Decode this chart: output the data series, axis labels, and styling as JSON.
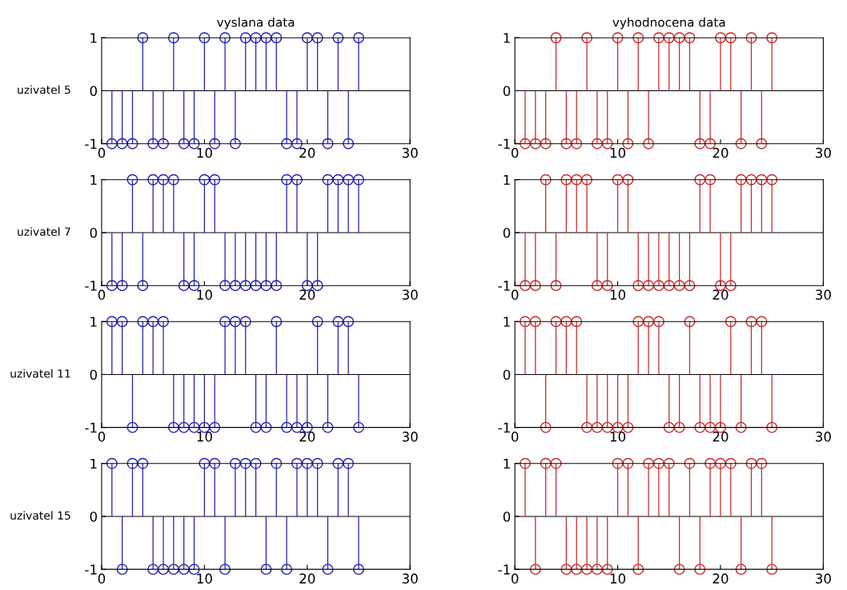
{
  "chart_data": [
    {
      "type": "lollipop",
      "title": "vyslana data",
      "ref_lines": [
        {
          "axis": "y",
          "value": 0,
          "color": "#000000"
        }
      ],
      "ylabel": "uzivatel 5",
      "x": [
        1,
        2,
        3,
        4,
        5,
        6,
        7,
        8,
        9,
        10,
        11,
        12,
        13,
        14,
        15,
        16,
        17,
        18,
        19,
        20,
        21,
        22,
        23,
        24,
        25
      ],
      "series": [
        {
          "color": "#2020b0",
          "values": [
            -1,
            -1,
            -1,
            1,
            -1,
            -1,
            1,
            -1,
            -1,
            1,
            -1,
            1,
            -1,
            1,
            1,
            1,
            1,
            -1,
            -1,
            1,
            1,
            -1,
            1,
            -1,
            1
          ]
        }
      ],
      "xlim": [
        0,
        30
      ],
      "xticks": [
        0,
        10,
        20,
        30
      ],
      "ylim": [
        -1,
        1
      ],
      "yticks": [
        -1,
        0,
        1
      ],
      "marker": "circle",
      "grid": false,
      "legend": false
    },
    {
      "type": "lollipop",
      "title": "vyhodnocena data",
      "ref_lines": [
        {
          "axis": "y",
          "value": 0,
          "color": "#000000"
        }
      ],
      "x": [
        1,
        2,
        3,
        4,
        5,
        6,
        7,
        8,
        9,
        10,
        11,
        12,
        13,
        14,
        15,
        16,
        17,
        18,
        19,
        20,
        21,
        22,
        23,
        24,
        25
      ],
      "series": [
        {
          "color": "#c82828",
          "values": [
            -1,
            -1,
            -1,
            1,
            -1,
            -1,
            1,
            -1,
            -1,
            1,
            -1,
            1,
            -1,
            1,
            1,
            1,
            1,
            -1,
            -1,
            1,
            1,
            -1,
            1,
            -1,
            1
          ]
        }
      ],
      "xlim": [
        0,
        30
      ],
      "xticks": [
        0,
        10,
        20,
        30
      ],
      "ylim": [
        -1,
        1
      ],
      "yticks": [
        -1,
        0,
        1
      ],
      "marker": "circle",
      "grid": false,
      "legend": false
    },
    {
      "type": "lollipop",
      "ylabel": "uzivatel 7",
      "ref_lines": [
        {
          "axis": "y",
          "value": 0,
          "color": "#000000"
        }
      ],
      "x": [
        1,
        2,
        3,
        4,
        5,
        6,
        7,
        8,
        9,
        10,
        11,
        12,
        13,
        14,
        15,
        16,
        17,
        18,
        19,
        20,
        21,
        22,
        23,
        24,
        25
      ],
      "series": [
        {
          "color": "#2020b0",
          "values": [
            -1,
            -1,
            1,
            -1,
            1,
            1,
            1,
            -1,
            -1,
            1,
            1,
            -1,
            -1,
            -1,
            -1,
            -1,
            -1,
            1,
            1,
            -1,
            -1,
            1,
            1,
            1,
            1
          ]
        }
      ],
      "xlim": [
        0,
        30
      ],
      "xticks": [
        0,
        10,
        20,
        30
      ],
      "ylim": [
        -1,
        1
      ],
      "yticks": [
        -1,
        0,
        1
      ],
      "marker": "circle",
      "grid": false,
      "legend": false
    },
    {
      "type": "lollipop",
      "ref_lines": [
        {
          "axis": "y",
          "value": 0,
          "color": "#000000"
        }
      ],
      "x": [
        1,
        2,
        3,
        4,
        5,
        6,
        7,
        8,
        9,
        10,
        11,
        12,
        13,
        14,
        15,
        16,
        17,
        18,
        19,
        20,
        21,
        22,
        23,
        24,
        25
      ],
      "series": [
        {
          "color": "#c82828",
          "values": [
            -1,
            -1,
            1,
            -1,
            1,
            1,
            1,
            -1,
            -1,
            1,
            1,
            -1,
            -1,
            -1,
            -1,
            -1,
            -1,
            1,
            1,
            -1,
            -1,
            1,
            1,
            1,
            1
          ]
        }
      ],
      "xlim": [
        0,
        30
      ],
      "xticks": [
        0,
        10,
        20,
        30
      ],
      "ylim": [
        -1,
        1
      ],
      "yticks": [
        -1,
        0,
        1
      ],
      "marker": "circle",
      "grid": false,
      "legend": false
    },
    {
      "type": "lollipop",
      "ylabel": "uzivatel 11",
      "ref_lines": [
        {
          "axis": "y",
          "value": 0,
          "color": "#000000"
        }
      ],
      "x": [
        1,
        2,
        3,
        4,
        5,
        6,
        7,
        8,
        9,
        10,
        11,
        12,
        13,
        14,
        15,
        16,
        17,
        18,
        19,
        20,
        21,
        22,
        23,
        24,
        25
      ],
      "series": [
        {
          "color": "#2020b0",
          "values": [
            1,
            1,
            -1,
            1,
            1,
            1,
            -1,
            -1,
            -1,
            -1,
            -1,
            1,
            1,
            1,
            -1,
            -1,
            1,
            -1,
            -1,
            -1,
            1,
            -1,
            1,
            1,
            -1
          ]
        }
      ],
      "xlim": [
        0,
        30
      ],
      "xticks": [
        0,
        10,
        20,
        30
      ],
      "ylim": [
        -1,
        1
      ],
      "yticks": [
        -1,
        0,
        1
      ],
      "marker": "circle",
      "grid": false,
      "legend": false
    },
    {
      "type": "lollipop",
      "ref_lines": [
        {
          "axis": "y",
          "value": 0,
          "color": "#000000"
        }
      ],
      "x": [
        1,
        2,
        3,
        4,
        5,
        6,
        7,
        8,
        9,
        10,
        11,
        12,
        13,
        14,
        15,
        16,
        17,
        18,
        19,
        20,
        21,
        22,
        23,
        24,
        25
      ],
      "series": [
        {
          "color": "#c82828",
          "values": [
            1,
            1,
            -1,
            1,
            1,
            1,
            -1,
            -1,
            -1,
            -1,
            -1,
            1,
            1,
            1,
            -1,
            -1,
            1,
            -1,
            -1,
            -1,
            1,
            -1,
            1,
            1,
            -1
          ]
        }
      ],
      "xlim": [
        0,
        30
      ],
      "xticks": [
        0,
        10,
        20,
        30
      ],
      "ylim": [
        -1,
        1
      ],
      "yticks": [
        -1,
        0,
        1
      ],
      "marker": "circle",
      "grid": false,
      "legend": false
    },
    {
      "type": "lollipop",
      "ylabel": "uzivatel 15",
      "ref_lines": [
        {
          "axis": "y",
          "value": 0,
          "color": "#000000"
        }
      ],
      "x": [
        1,
        2,
        3,
        4,
        5,
        6,
        7,
        8,
        9,
        10,
        11,
        12,
        13,
        14,
        15,
        16,
        17,
        18,
        19,
        20,
        21,
        22,
        23,
        24,
        25
      ],
      "series": [
        {
          "color": "#2020b0",
          "values": [
            1,
            -1,
            1,
            1,
            -1,
            -1,
            -1,
            -1,
            -1,
            1,
            1,
            -1,
            1,
            1,
            1,
            -1,
            1,
            -1,
            1,
            1,
            1,
            -1,
            1,
            1,
            -1
          ]
        }
      ],
      "xlim": [
        0,
        30
      ],
      "xticks": [
        0,
        10,
        20,
        30
      ],
      "ylim": [
        -1,
        1
      ],
      "yticks": [
        -1,
        0,
        1
      ],
      "marker": "circle",
      "grid": false,
      "legend": false
    },
    {
      "type": "lollipop",
      "ref_lines": [
        {
          "axis": "y",
          "value": 0,
          "color": "#000000"
        }
      ],
      "x": [
        1,
        2,
        3,
        4,
        5,
        6,
        7,
        8,
        9,
        10,
        11,
        12,
        13,
        14,
        15,
        16,
        17,
        18,
        19,
        20,
        21,
        22,
        23,
        24,
        25
      ],
      "series": [
        {
          "color": "#c82828",
          "values": [
            1,
            -1,
            1,
            1,
            -1,
            -1,
            -1,
            -1,
            -1,
            1,
            1,
            -1,
            1,
            1,
            1,
            -1,
            1,
            -1,
            1,
            1,
            1,
            -1,
            1,
            1,
            -1
          ]
        }
      ],
      "xlim": [
        0,
        30
      ],
      "xticks": [
        0,
        10,
        20,
        30
      ],
      "ylim": [
        -1,
        1
      ],
      "yticks": [
        -1,
        0,
        1
      ],
      "marker": "circle",
      "grid": false,
      "legend": false
    }
  ]
}
